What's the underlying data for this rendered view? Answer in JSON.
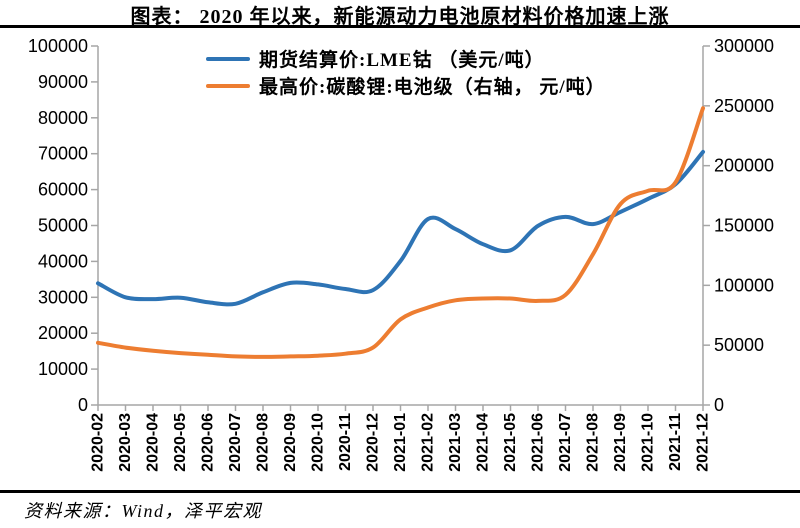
{
  "header": {
    "title": "图表： 2020 年以来，新能源动力电池原材料价格加速上涨"
  },
  "footer": {
    "source": "资料来源：Wind，泽平宏观"
  },
  "legend": {
    "items": [
      {
        "label": "期货结算价:LME钴 （美元/吨）",
        "color": "#2E74B5"
      },
      {
        "label": "最高价:碳酸锂:电池级（右轴， 元/吨）",
        "color": "#ED7D31"
      }
    ]
  },
  "colors": {
    "cobalt_line": "#2E74B5",
    "lithium_line": "#ED7D31",
    "axis": "#A6A6A6",
    "text": "#000000",
    "divider": "#000000"
  },
  "chart_data": {
    "type": "line",
    "title": "图表： 2020 年以来，新能源动力电池原材料价格加速上涨",
    "x": [
      "2020-02",
      "2020-03",
      "2020-04",
      "2020-05",
      "2020-06",
      "2020-07",
      "2020-08",
      "2020-09",
      "2020-10",
      "2020-11",
      "2020-12",
      "2021-01",
      "2021-02",
      "2021-03",
      "2021-04",
      "2021-05",
      "2021-06",
      "2021-07",
      "2021-08",
      "2021-09",
      "2021-10",
      "2021-11",
      "2021-12"
    ],
    "series": [
      {
        "name": "期货结算价:LME钴 （美元/吨）",
        "axis": "left",
        "unit": "美元/吨",
        "color": "#2E74B5",
        "values": [
          33900,
          30000,
          29500,
          29900,
          28600,
          28200,
          31400,
          34000,
          33600,
          32300,
          32000,
          40100,
          51800,
          49000,
          44800,
          43100,
          49900,
          52400,
          50400,
          53800,
          57400,
          61500,
          70500
        ]
      },
      {
        "name": "最高价:碳酸锂:电池级（右轴，元/吨）",
        "axis": "right",
        "unit": "元/吨",
        "color": "#ED7D31",
        "values": [
          52000,
          48000,
          45400,
          43400,
          42000,
          40600,
          40200,
          40600,
          41200,
          42900,
          48000,
          71500,
          81500,
          87500,
          89000,
          89000,
          87000,
          92000,
          126000,
          168000,
          179000,
          186000,
          248000
        ]
      }
    ],
    "left_axis": {
      "min": 0,
      "max": 100000,
      "step": 10000,
      "ticks": [
        0,
        10000,
        20000,
        30000,
        40000,
        50000,
        60000,
        70000,
        80000,
        90000,
        100000
      ]
    },
    "right_axis": {
      "min": 0,
      "max": 300000,
      "step": 50000,
      "ticks": [
        0,
        50000,
        100000,
        150000,
        200000,
        250000,
        300000
      ]
    },
    "grid": false,
    "legend_position": "top-inside"
  }
}
